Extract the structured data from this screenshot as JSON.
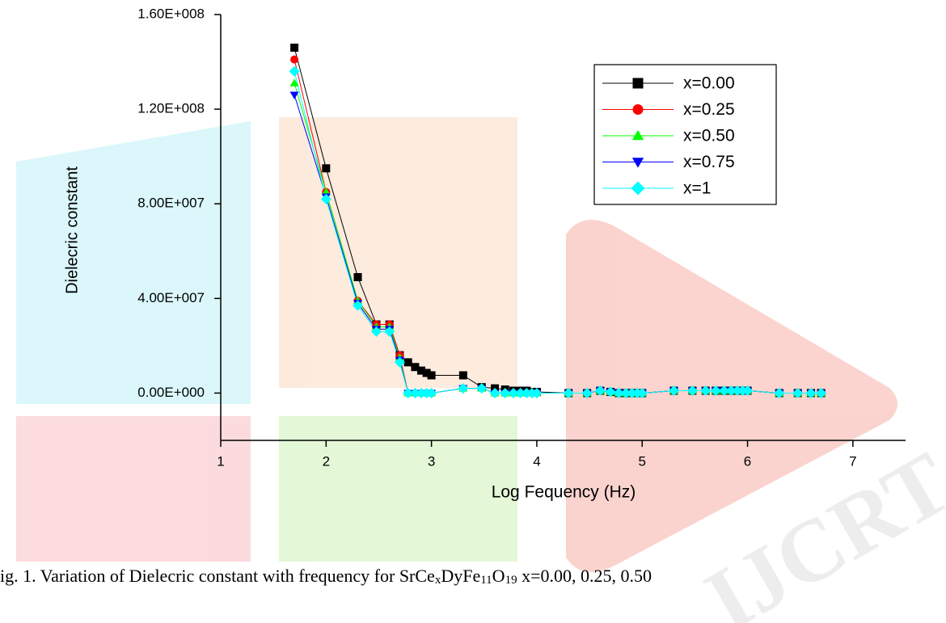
{
  "chart_data": {
    "type": "line",
    "y_label": "Dielecric constant",
    "x_label": "Log Fequency (Hz)",
    "caption_parts": [
      "ig. 1. Variation of Dielecric constant with frequency for SrCe",
      "x",
      "DyFe",
      "11",
      "O",
      "19",
      " x=0.00, 0.25, 0.50"
    ],
    "x": [
      1.699,
      2,
      2.301,
      2.477,
      2.602,
      2.699,
      2.778,
      2.845,
      2.903,
      2.954,
      3,
      3.301,
      3.477,
      3.602,
      3.699,
      3.778,
      3.845,
      3.903,
      3.954,
      4,
      4.301,
      4.477,
      4.602,
      4.699,
      4.778,
      4.845,
      4.903,
      4.954,
      5,
      5.301,
      5.477,
      5.602,
      5.699,
      5.778,
      5.845,
      5.903,
      5.954,
      6,
      6.301,
      6.477,
      6.602,
      6.699
    ],
    "xlim": [
      1,
      7.5
    ],
    "xticks": [
      1,
      2,
      3,
      4,
      5,
      6,
      7
    ],
    "ylim": [
      -20000000,
      160000000
    ],
    "yticks": [
      {
        "value": 0,
        "label": "0.00E+000"
      },
      {
        "value": 40000000,
        "label": "4.00E+007"
      },
      {
        "value": 80000000,
        "label": "8.00E+007"
      },
      {
        "value": 120000000,
        "label": "1.20E+008"
      },
      {
        "value": 160000000,
        "label": "1.60E+008"
      }
    ],
    "legend": "upper right",
    "series": [
      {
        "name": "x=0.00",
        "color": "#000000",
        "marker": "square",
        "values": [
          146000000,
          95000000,
          49000000,
          29000000,
          29000000,
          16000000,
          13000000,
          11000000,
          9500000,
          8500000,
          7500000,
          7500000,
          2500000,
          2000000,
          1500000,
          1000000,
          1000000,
          1000000,
          500000,
          500000,
          0,
          0,
          1000000,
          500000,
          0,
          0,
          0,
          0,
          0,
          1000000,
          1000000,
          1000000,
          1000000,
          1000000,
          1000000,
          1000000,
          1000000,
          1000000,
          0,
          0,
          0,
          0
        ]
      },
      {
        "name": "x=0.25",
        "color": "#ff0000",
        "marker": "circle",
        "values": [
          141000000,
          85000000,
          39000000,
          29000000,
          29000000,
          16000000,
          0,
          0,
          0,
          0,
          0,
          2000000,
          2000000,
          0,
          0,
          0,
          0,
          0,
          0,
          0,
          0,
          0,
          1000000,
          500000,
          0,
          0,
          0,
          0,
          0,
          1000000,
          1000000,
          1000000,
          1000000,
          1000000,
          1000000,
          1000000,
          1000000,
          1000000,
          0,
          0,
          0,
          0
        ]
      },
      {
        "name": "x=0.50",
        "color": "#00ff00",
        "marker": "triangle-up",
        "values": [
          131000000,
          85000000,
          39000000,
          28000000,
          28000000,
          15000000,
          0,
          0,
          0,
          0,
          0,
          2000000,
          2000000,
          0,
          0,
          0,
          0,
          0,
          0,
          0,
          0,
          0,
          1000000,
          500000,
          0,
          0,
          0,
          0,
          0,
          1000000,
          1000000,
          1000000,
          1000000,
          1000000,
          1000000,
          1000000,
          1000000,
          1000000,
          0,
          0,
          0,
          0
        ]
      },
      {
        "name": "x=0.75",
        "color": "#0000ff",
        "marker": "triangle-down",
        "values": [
          126000000,
          83000000,
          38000000,
          27000000,
          27000000,
          14000000,
          0,
          0,
          0,
          0,
          0,
          2000000,
          2000000,
          0,
          0,
          0,
          0,
          0,
          0,
          0,
          0,
          0,
          1000000,
          500000,
          0,
          0,
          0,
          0,
          0,
          1000000,
          1000000,
          1000000,
          1000000,
          1000000,
          1000000,
          1000000,
          1000000,
          1000000,
          0,
          0,
          0,
          0
        ]
      },
      {
        "name": "x=1",
        "color": "#00ffff",
        "marker": "diamond",
        "values": [
          136000000,
          82000000,
          37000000,
          26000000,
          26000000,
          13000000,
          0,
          0,
          0,
          0,
          0,
          2000000,
          2000000,
          0,
          0,
          0,
          0,
          0,
          0,
          0,
          0,
          0,
          1000000,
          500000,
          0,
          0,
          0,
          0,
          0,
          1000000,
          1000000,
          1000000,
          1000000,
          1000000,
          1000000,
          1000000,
          1000000,
          1000000,
          0,
          0,
          0,
          0
        ]
      }
    ]
  }
}
